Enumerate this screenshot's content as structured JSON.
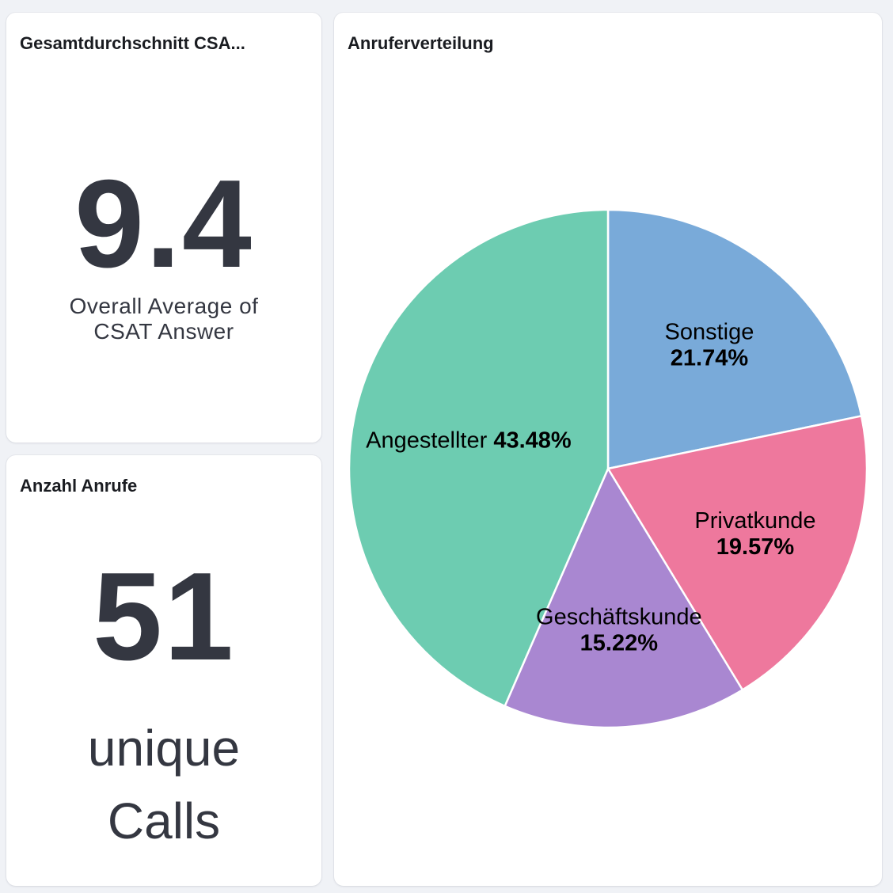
{
  "panels": {
    "csat": {
      "title": "Gesamtdurchschnitt CSA...",
      "value": "9.4",
      "caption_line1": "Overall Average of",
      "caption_line2": "CSAT Answer"
    },
    "calls": {
      "title": "Anzahl Anrufe",
      "value": "51",
      "caption_line1": "unique",
      "caption_line2": "Calls"
    },
    "pie": {
      "title": "Anruferverteilung"
    }
  },
  "chart_data": {
    "type": "pie",
    "title": "Anruferverteilung",
    "slices": [
      {
        "label": "Sonstige",
        "value": 21.74,
        "pct_label": "21.74%",
        "color": "#79aad9"
      },
      {
        "label": "Privatkunde",
        "value": 19.57,
        "pct_label": "19.57%",
        "color": "#ee789d"
      },
      {
        "label": "Geschäftskunde",
        "value": 15.22,
        "pct_label": "15.22%",
        "color": "#a987d1"
      },
      {
        "label": "Angestellter",
        "value": 43.48,
        "pct_label": "43.48%",
        "color": "#6dccb1"
      }
    ],
    "start": "12 o'clock",
    "direction": "clockwise"
  }
}
